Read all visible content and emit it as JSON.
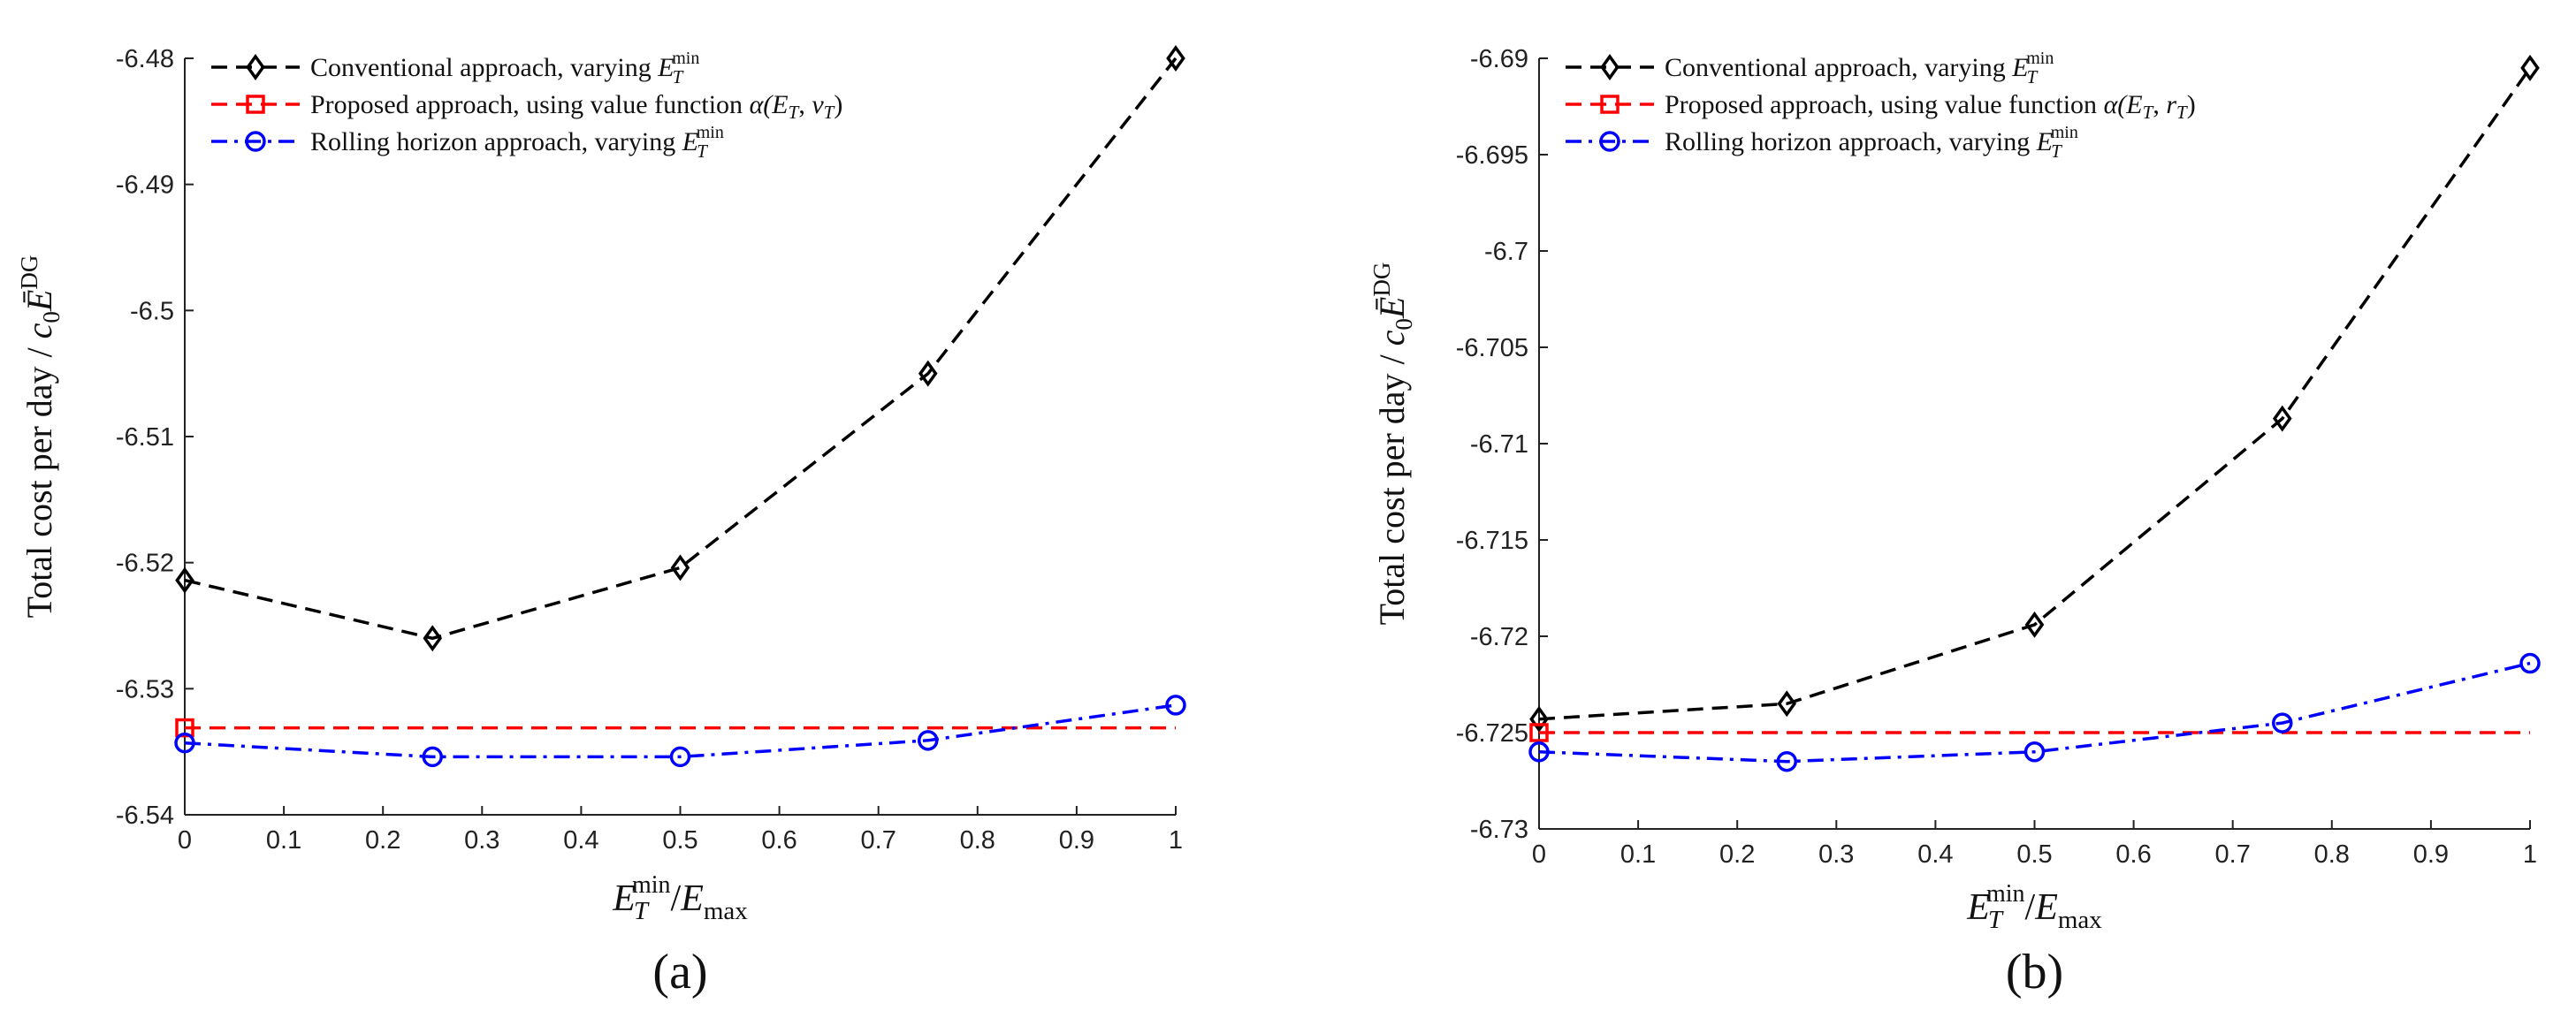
{
  "chart_data": [
    {
      "type": "line",
      "panel_label": "(a)",
      "xlabel": "E_T^min / E_max",
      "ylabel": "Total cost per day / c0 Ē^DG",
      "x_ticks": [
        "0",
        "0.1",
        "0.2",
        "0.3",
        "0.4",
        "0.5",
        "0.6",
        "0.7",
        "0.8",
        "0.9",
        "1"
      ],
      "y_ticks": [
        "-6.48",
        "-6.49",
        "-6.5",
        "-6.51",
        "-6.52",
        "-6.53",
        "-6.54"
      ],
      "xlim": [
        0,
        1
      ],
      "ylim": [
        -6.54,
        -6.48
      ],
      "legend_position": "top-left",
      "series": [
        {
          "name": "Conventional approach, varying E_T^min",
          "legend_prefix": "Conventional approach, varying",
          "color": "#000000",
          "dash": "dashed",
          "marker": "diamond",
          "x": [
            0,
            0.25,
            0.5,
            0.75,
            1
          ],
          "y": [
            -6.5214,
            -6.526,
            -6.5204,
            -6.505,
            -6.48
          ]
        },
        {
          "name": "Proposed approach, using value function α(E_T, v_T)",
          "legend_prefix": "Proposed approach, using value function",
          "legend_func": "α(E",
          "legend_var": "v",
          "color": "#ff0000",
          "dash": "dashed",
          "marker": "square",
          "x": [
            0,
            1
          ],
          "y": [
            -6.5331,
            -6.5331
          ],
          "marker_x": [
            0
          ]
        },
        {
          "name": "Rolling horizon approach, varying E_T^min",
          "legend_prefix": "Rolling horizon approach, varying",
          "color": "#0000ff",
          "dash": "dashdot",
          "marker": "circle",
          "x": [
            0,
            0.25,
            0.5,
            0.75,
            1
          ],
          "y": [
            -6.5343,
            -6.5354,
            -6.5354,
            -6.5341,
            -6.5313
          ]
        }
      ]
    },
    {
      "type": "line",
      "panel_label": "(b)",
      "xlabel": "E_T^min / E_max",
      "ylabel": "Total cost per day / c0 Ē^DG",
      "x_ticks": [
        "0",
        "0.1",
        "0.2",
        "0.3",
        "0.4",
        "0.5",
        "0.6",
        "0.7",
        "0.8",
        "0.9",
        "1"
      ],
      "y_ticks": [
        "-6.69",
        "-6.695",
        "-6.7",
        "-6.705",
        "-6.71",
        "-6.715",
        "-6.72",
        "-6.725",
        "-6.73"
      ],
      "xlim": [
        0,
        1
      ],
      "ylim": [
        -6.73,
        -6.69
      ],
      "legend_position": "top-left",
      "series": [
        {
          "name": "Conventional approach, varying E_T^min",
          "legend_prefix": "Conventional approach, varying",
          "color": "#000000",
          "dash": "dashed",
          "marker": "diamond",
          "x": [
            0,
            0.25,
            0.5,
            0.75,
            1
          ],
          "y": [
            -6.7243,
            -6.7235,
            -6.7194,
            -6.7087,
            -6.6905
          ]
        },
        {
          "name": "Proposed approach, using value function α(E_T, r_T)",
          "legend_prefix": "Proposed approach, using value function",
          "legend_func": "α(E",
          "legend_var": "r",
          "color": "#ff0000",
          "dash": "dashed",
          "marker": "square",
          "x": [
            0,
            1
          ],
          "y": [
            -6.725,
            -6.725
          ],
          "marker_x": [
            0
          ]
        },
        {
          "name": "Rolling horizon approach, varying E_T^min",
          "legend_prefix": "Rolling horizon approach, varying",
          "color": "#0000ff",
          "dash": "dashdot",
          "marker": "circle",
          "x": [
            0,
            0.25,
            0.5,
            0.75,
            1
          ],
          "y": [
            -6.726,
            -6.7265,
            -6.726,
            -6.7245,
            -6.7214
          ]
        }
      ]
    }
  ]
}
